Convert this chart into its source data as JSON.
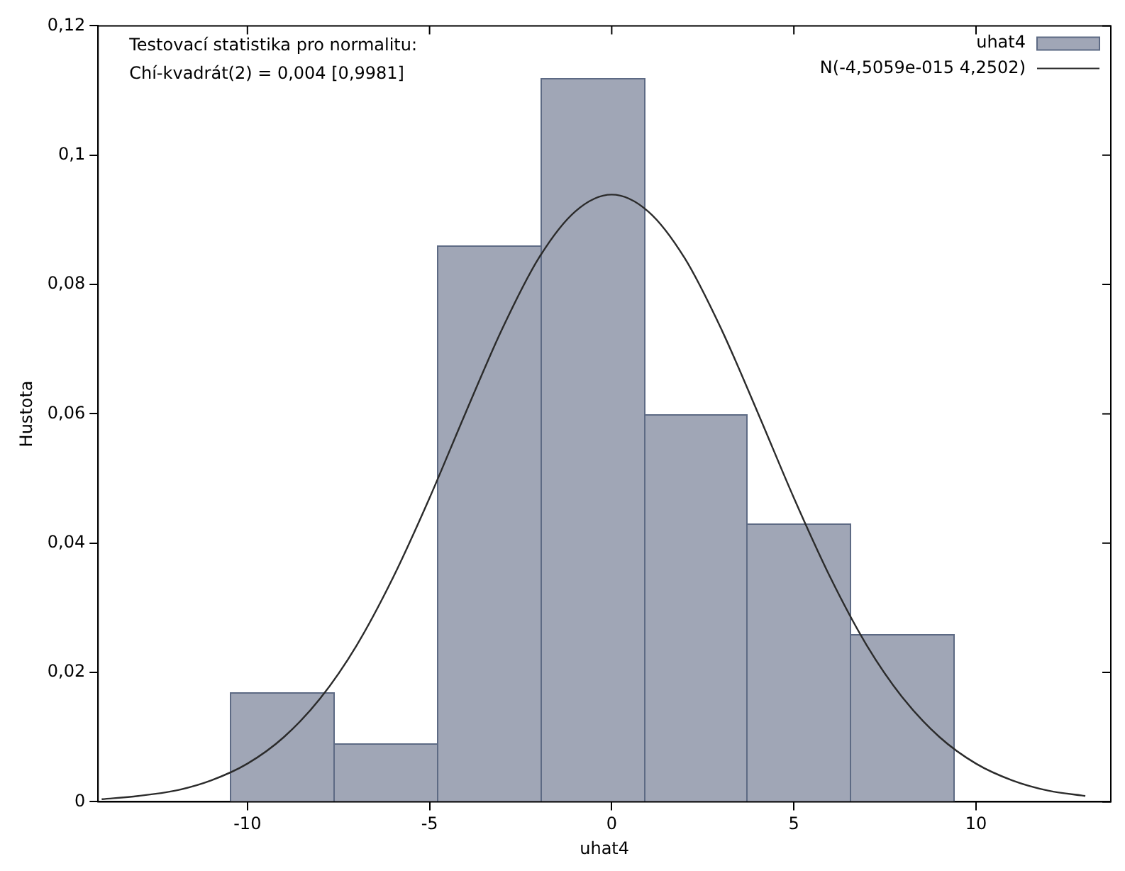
{
  "chart_data": {
    "type": "histogram",
    "xlabel": "uhat4",
    "ylabel": "Hustota",
    "annotations": [
      "Testovací statistika pro normalitu:",
      "Chí-kvadrát(2) = 0,004 [0,9981]"
    ],
    "bins": [
      -10.49,
      -7.65,
      -4.81,
      -1.97,
      0.87,
      3.71,
      6.55,
      9.39
    ],
    "series": [
      {
        "name": "uhat4",
        "type": "histogram",
        "color": "#a0a6b6",
        "values": [
          0.017,
          0.009,
          0.086,
          0.112,
          0.06,
          0.043,
          0.026
        ]
      },
      {
        "name": "N(-4,5059e-015 4,2502)",
        "type": "line",
        "color": "#2b2b2b",
        "x": [
          -14,
          -13,
          -12,
          -11,
          -10,
          -9,
          -8,
          -7,
          -6,
          -5,
          -4,
          -3,
          -2,
          -1,
          0,
          1,
          2,
          3,
          4,
          5,
          6,
          7,
          8,
          9,
          10,
          11,
          12,
          13
        ],
        "values": [
          0.0004,
          0.0009,
          0.0017,
          0.0033,
          0.0059,
          0.01,
          0.016,
          0.0242,
          0.0347,
          0.047,
          0.0603,
          0.0732,
          0.0841,
          0.0913,
          0.0939,
          0.0913,
          0.0841,
          0.0732,
          0.0603,
          0.047,
          0.0347,
          0.0242,
          0.016,
          0.01,
          0.0059,
          0.0033,
          0.0017,
          0.0009
        ]
      }
    ],
    "xlim": [
      -14.1,
      13.7
    ],
    "xticks": [
      -10,
      -5,
      0,
      5,
      10
    ],
    "ylim": [
      0,
      0.12
    ],
    "yticks": [
      0,
      {
        "value": 0.02,
        "label": "0,02"
      },
      {
        "value": 0.04,
        "label": "0,04"
      },
      {
        "value": 0.06,
        "label": "0,06"
      },
      {
        "value": 0.08,
        "label": "0,08"
      },
      {
        "value": 0.1,
        "label": "0,1"
      },
      {
        "value": 0.12,
        "label": "0,12"
      }
    ],
    "grid": false,
    "legend": "top right",
    "marker": "none",
    "line_style": "solid"
  }
}
